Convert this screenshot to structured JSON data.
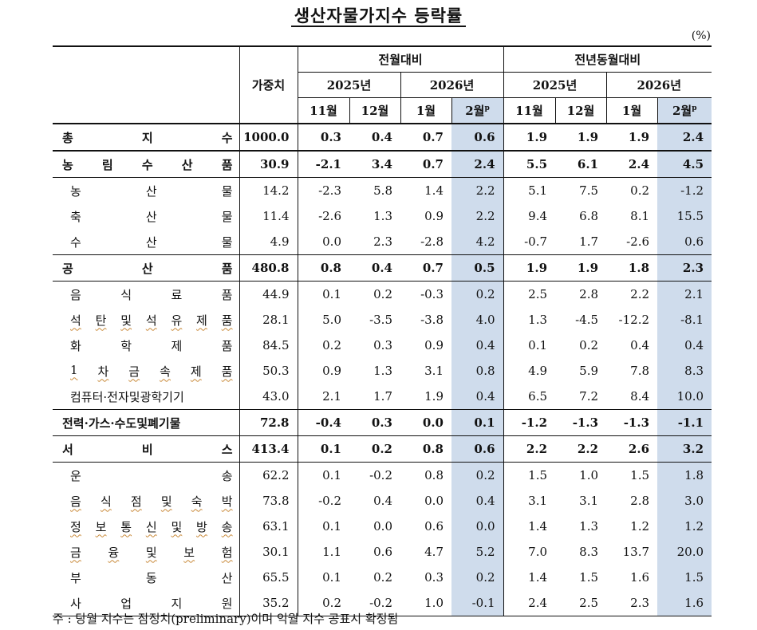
{
  "title": "생산자물가지수 등락률",
  "unit": "(%)",
  "header": {
    "weight": "가중치",
    "mom": "전월대비",
    "yoy": "전년동월대비",
    "y2025": "2025년",
    "y2026": "2026년",
    "m11": "11월",
    "m12": "12월",
    "m1": "1월",
    "m2": "2월",
    "prelim": "p"
  },
  "rows": [
    {
      "label": "총지수",
      "weight": "1000.0",
      "v": [
        "0.3",
        "0.4",
        "0.7",
        "0.6",
        "1.9",
        "1.9",
        "1.9",
        "2.4"
      ]
    },
    {
      "label": "농림수산품",
      "weight": "30.9",
      "v": [
        "-2.1",
        "3.4",
        "0.7",
        "2.4",
        "5.5",
        "6.1",
        "2.4",
        "4.5"
      ]
    },
    {
      "label": "농산물",
      "weight": "14.2",
      "v": [
        "-2.3",
        "5.8",
        "1.4",
        "2.2",
        "5.1",
        "7.5",
        "0.2",
        "-1.2"
      ]
    },
    {
      "label": "축산물",
      "weight": "11.4",
      "v": [
        "-2.6",
        "1.3",
        "0.9",
        "2.2",
        "9.4",
        "6.8",
        "8.1",
        "15.5"
      ]
    },
    {
      "label": "수산물",
      "weight": "4.9",
      "v": [
        "0.0",
        "2.3",
        "-2.8",
        "4.2",
        "-0.7",
        "1.7",
        "-2.6",
        "0.6"
      ]
    },
    {
      "label": "공산품",
      "weight": "480.8",
      "v": [
        "0.8",
        "0.4",
        "0.7",
        "0.5",
        "1.9",
        "1.9",
        "1.8",
        "2.3"
      ]
    },
    {
      "label": "음식료품",
      "weight": "44.9",
      "v": [
        "0.1",
        "0.2",
        "-0.3",
        "0.2",
        "2.5",
        "2.8",
        "2.2",
        "2.1"
      ]
    },
    {
      "label": "석탄및석유제품",
      "weight": "28.1",
      "v": [
        "5.0",
        "-3.5",
        "-3.8",
        "4.0",
        "1.3",
        "-4.5",
        "-12.2",
        "-8.1"
      ]
    },
    {
      "label": "화학제품",
      "weight": "84.5",
      "v": [
        "0.2",
        "0.3",
        "0.9",
        "0.4",
        "0.1",
        "0.2",
        "0.4",
        "0.4"
      ]
    },
    {
      "label": "1차금속제품",
      "weight": "50.3",
      "v": [
        "0.9",
        "1.3",
        "3.1",
        "0.8",
        "4.9",
        "5.9",
        "7.8",
        "8.3"
      ]
    },
    {
      "label": "컴퓨터·전자및광학기기",
      "weight": "43.0",
      "v": [
        "2.1",
        "1.7",
        "1.9",
        "0.4",
        "6.5",
        "7.2",
        "8.4",
        "10.0"
      ]
    },
    {
      "label": "전력·가스·수도및폐기물",
      "weight": "72.8",
      "v": [
        "-0.4",
        "0.3",
        "0.0",
        "0.1",
        "-1.2",
        "-1.3",
        "-1.3",
        "-1.1"
      ]
    },
    {
      "label": "서비스",
      "weight": "413.4",
      "v": [
        "0.1",
        "0.2",
        "0.8",
        "0.6",
        "2.2",
        "2.2",
        "2.6",
        "3.2"
      ]
    },
    {
      "label": "운송",
      "weight": "62.2",
      "v": [
        "0.1",
        "-0.2",
        "0.8",
        "0.2",
        "1.5",
        "1.0",
        "1.5",
        "1.8"
      ]
    },
    {
      "label": "음식점및숙박",
      "weight": "73.8",
      "v": [
        "-0.2",
        "0.4",
        "0.0",
        "0.4",
        "3.1",
        "3.1",
        "2.8",
        "3.0"
      ]
    },
    {
      "label": "정보통신및방송",
      "weight": "63.1",
      "v": [
        "0.1",
        "0.0",
        "0.6",
        "0.0",
        "1.4",
        "1.3",
        "1.2",
        "1.2"
      ]
    },
    {
      "label": "금융및보험",
      "weight": "30.1",
      "v": [
        "1.1",
        "0.6",
        "4.7",
        "5.2",
        "7.0",
        "8.3",
        "13.7",
        "20.0"
      ]
    },
    {
      "label": "부동산",
      "weight": "65.5",
      "v": [
        "0.1",
        "0.2",
        "0.3",
        "0.2",
        "1.4",
        "1.5",
        "1.6",
        "1.5"
      ]
    },
    {
      "label": "사업지원",
      "weight": "35.2",
      "v": [
        "0.2",
        "-0.2",
        "1.0",
        "-0.1",
        "2.4",
        "2.5",
        "2.3",
        "1.6"
      ]
    }
  ],
  "note": "주 : 당월 지수는 잠정치(preliminary)이며 익월 지수 공표시 확정됨"
}
